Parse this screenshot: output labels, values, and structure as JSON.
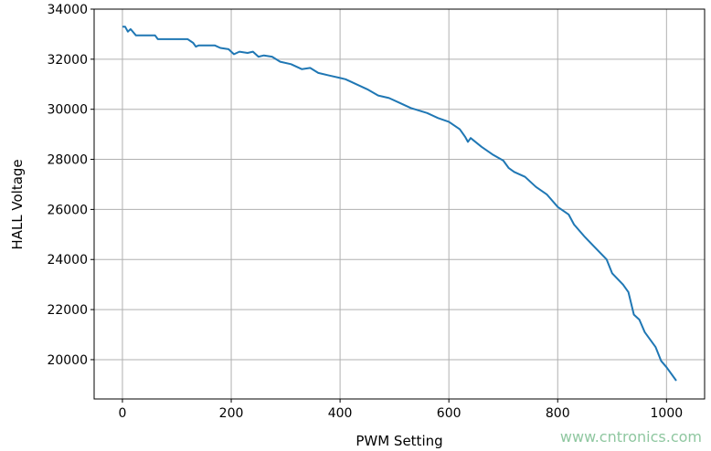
{
  "chart_data": {
    "type": "line",
    "title": "",
    "xlabel": "PWM Setting",
    "ylabel": "HALL Voltage",
    "xlim": [
      -52,
      1070
    ],
    "ylim": [
      18430,
      34000
    ],
    "xticks": [
      0,
      200,
      400,
      600,
      800,
      1000
    ],
    "yticks": [
      20000,
      22000,
      24000,
      26000,
      28000,
      30000,
      32000,
      34000
    ],
    "grid": true,
    "series": [
      {
        "color": "#1f77b4",
        "x": [
          0,
          5,
          10,
          15,
          25,
          60,
          65,
          120,
          130,
          135,
          140,
          170,
          180,
          195,
          205,
          215,
          230,
          240,
          250,
          260,
          275,
          290,
          310,
          330,
          345,
          360,
          380,
          400,
          410,
          430,
          450,
          470,
          490,
          510,
          530,
          560,
          580,
          600,
          620,
          630,
          635,
          640,
          660,
          680,
          700,
          710,
          720,
          740,
          760,
          780,
          800,
          820,
          830,
          850,
          870,
          890,
          900,
          920,
          930,
          940,
          950,
          960,
          980,
          990,
          1000,
          1018
        ],
        "y": [
          33300,
          33300,
          33100,
          33200,
          32950,
          32950,
          32800,
          32800,
          32650,
          32500,
          32550,
          32550,
          32450,
          32400,
          32200,
          32300,
          32250,
          32300,
          32100,
          32150,
          32100,
          31900,
          31800,
          31600,
          31650,
          31450,
          31350,
          31250,
          31200,
          31000,
          30800,
          30550,
          30450,
          30250,
          30050,
          29850,
          29650,
          29500,
          29200,
          28900,
          28700,
          28850,
          28500,
          28200,
          27950,
          27650,
          27500,
          27300,
          26900,
          26600,
          26100,
          25800,
          25400,
          24900,
          24450,
          24000,
          23450,
          23000,
          22700,
          21800,
          21600,
          21100,
          20500,
          19950,
          19700,
          19160
        ]
      }
    ]
  },
  "watermark": "www.cntronics.com"
}
